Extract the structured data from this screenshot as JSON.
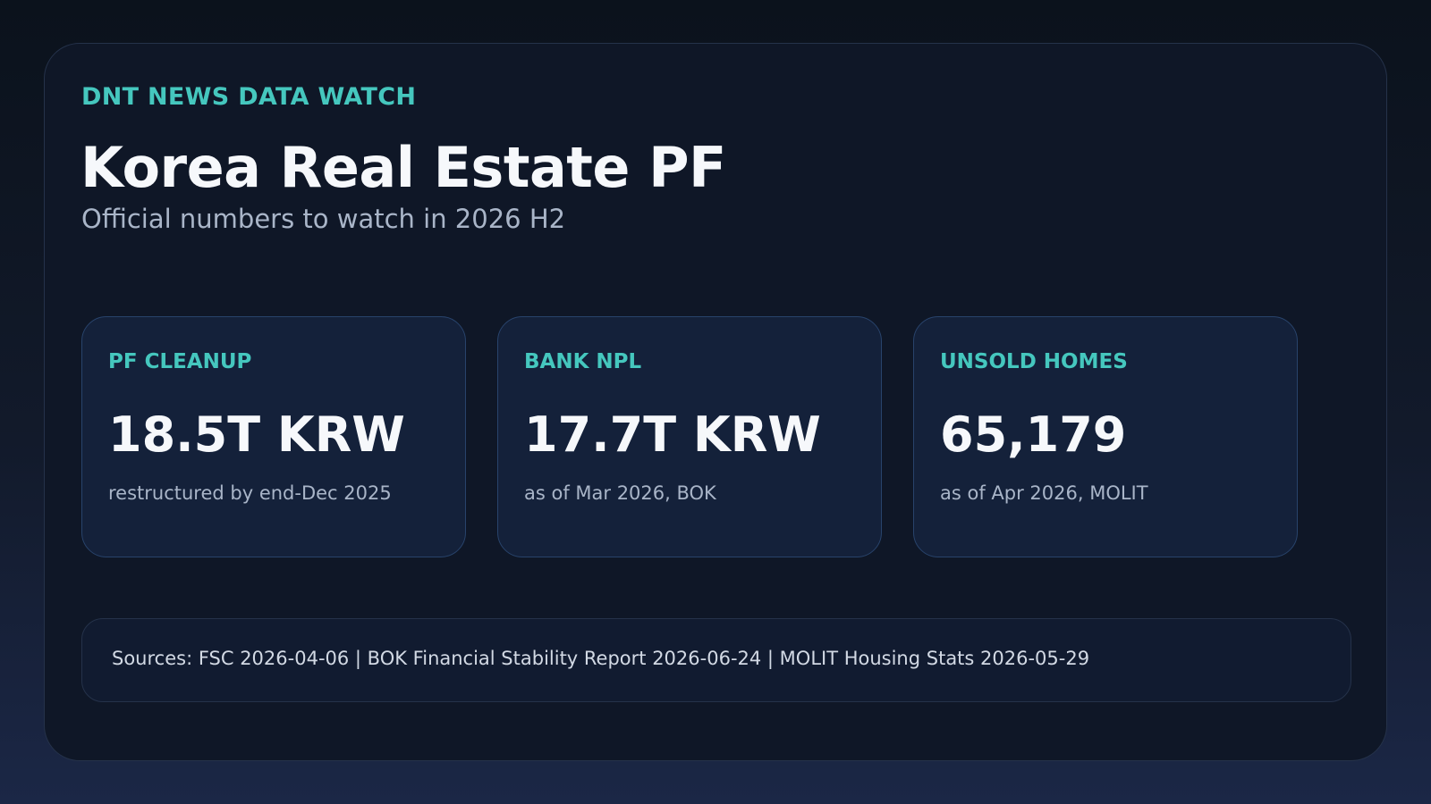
{
  "header": {
    "kicker": "DNT NEWS DATA WATCH",
    "title": "Korea Real Estate PF",
    "subtitle": "Official numbers to watch in 2026 H2"
  },
  "cards": [
    {
      "label": "PF CLEANUP",
      "value": "18.5T KRW",
      "note": "restructured by end-Dec 2025"
    },
    {
      "label": "BANK NPL",
      "value": "17.7T KRW",
      "note": "as of Mar 2026, BOK"
    },
    {
      "label": "UNSOLD HOMES",
      "value": "65,179",
      "note": "as of Apr 2026, MOLIT"
    }
  ],
  "sources": {
    "text": "Sources: FSC 2026-04-06 | BOK Financial Stability Report 2026-06-24 | MOLIT Housing Stats 2026-05-29"
  },
  "colors": {
    "accent": "#45c7be",
    "background_top": "#0b121c",
    "background_bottom": "#1b2746",
    "card_background": "#14213a",
    "card_border": "#28436b",
    "primary_text": "#f6f8fb",
    "secondary_text": "#a9b5c8"
  }
}
